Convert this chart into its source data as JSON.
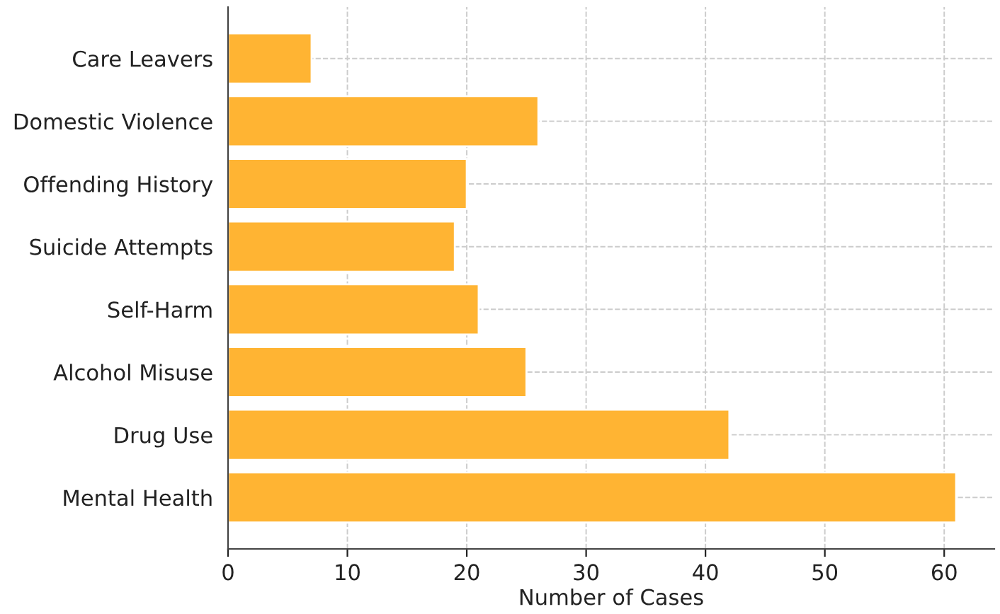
{
  "chart_data": {
    "type": "bar",
    "orientation": "horizontal",
    "xlabel": "Number of Cases",
    "categories": [
      "Care Leavers",
      "Domestic Violence",
      "Offending History",
      "Suicide Attempts",
      "Self-Harm",
      "Alcohol Misuse",
      "Drug Use",
      "Mental Health"
    ],
    "values": [
      7,
      26,
      20,
      19,
      21,
      25,
      42,
      61
    ],
    "color": "#ffb433",
    "xlim": [
      0,
      64.2
    ],
    "xticks": [
      0,
      10,
      20,
      30,
      40,
      50,
      60
    ],
    "grid": true
  }
}
